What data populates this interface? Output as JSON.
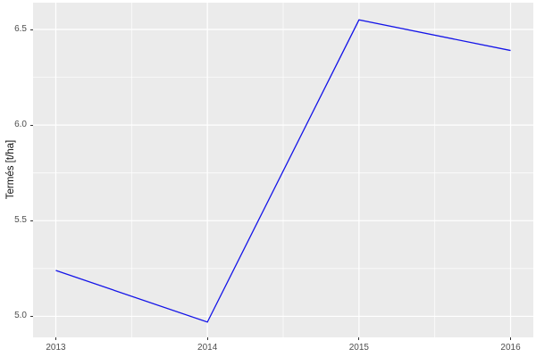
{
  "chart_data": {
    "type": "line",
    "title": "",
    "xlabel": "",
    "ylabel": "Termés [t/ha]",
    "x": [
      2013,
      2014,
      2015,
      2016
    ],
    "series": [
      {
        "name": "termes",
        "values": [
          5.24,
          4.97,
          6.55,
          6.39
        ],
        "color": "#1414E8",
        "stroke_width": 1.3
      }
    ],
    "x_ticks": [
      2013,
      2014,
      2015,
      2016
    ],
    "x_tick_labels": [
      "2013",
      "2014",
      "2015",
      "2016"
    ],
    "y_ticks": [
      5.0,
      5.5,
      6.0,
      6.5
    ],
    "y_tick_labels": [
      "5.0",
      "5.5",
      "6.0",
      "6.5"
    ],
    "xlim": [
      2012.85,
      2016.15
    ],
    "ylim": [
      4.89,
      6.64
    ],
    "legend": "none",
    "grid": {
      "major_color": "#FFFFFF",
      "minor_color": "#FFFFFF",
      "minor_visible": true
    },
    "panel_bg": "#EBEBEB",
    "tick_mark_color": "#333333",
    "tick_label_color": "#4D4D4D",
    "axis_title_color": "#111111"
  }
}
